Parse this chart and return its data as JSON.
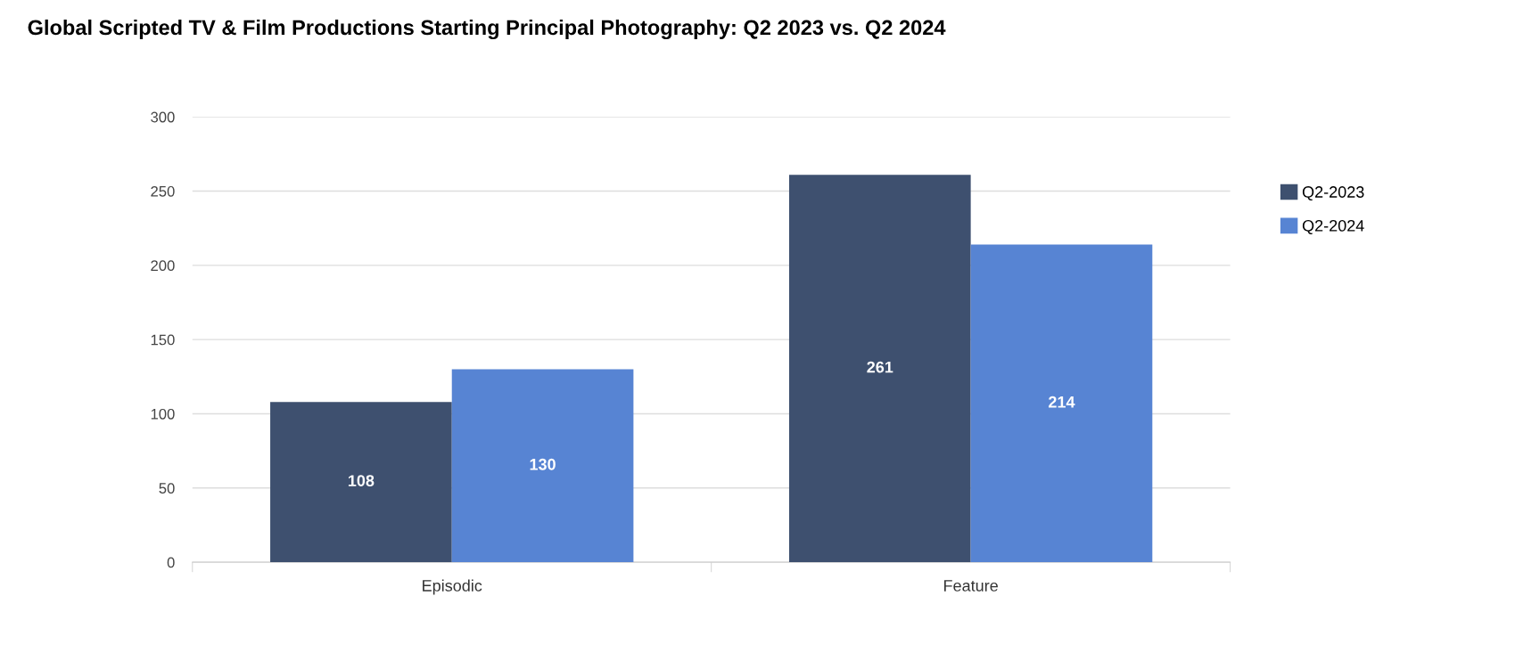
{
  "chart_data": {
    "type": "bar",
    "title": "Global Scripted TV & Film Productions Starting Principal Photography: Q2 2023 vs. Q2 2024",
    "categories": [
      "Episodic",
      "Feature"
    ],
    "series": [
      {
        "name": "Q2-2023",
        "color": "#3e506f",
        "values": [
          108,
          261
        ]
      },
      {
        "name": "Q2-2024",
        "color": "#5784d3",
        "values": [
          130,
          214
        ]
      }
    ],
    "ylim": [
      0,
      300
    ],
    "yticks": [
      0,
      50,
      100,
      150,
      200,
      250,
      300
    ],
    "grid": "y",
    "legend": "top right",
    "data_labels": true
  }
}
